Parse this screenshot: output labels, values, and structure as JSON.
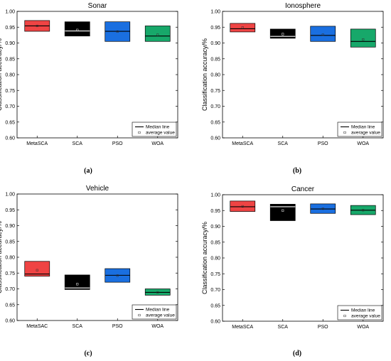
{
  "figure": {
    "panel_labels": [
      "(a)",
      "(b)",
      "(c)",
      "(d)"
    ]
  },
  "colors": {
    "MetaSCA": "#ef4444",
    "MetaSAC": "#ef4444",
    "SCA": "#000000",
    "PSO": "#1a6fe0",
    "WOA": "#17a86a"
  },
  "chart_data": [
    {
      "type": "box",
      "title": "Sonar",
      "xlabel": "",
      "ylabel": "Classification accuracy/%",
      "ylim": [
        0.6,
        1.0
      ],
      "yticks": [
        "0.60",
        "0.65",
        "0.70",
        "0.75",
        "0.80",
        "0.85",
        "0.90",
        "0.95",
        "1.00"
      ],
      "categories": [
        "MetaSCA",
        "SCA",
        "PSO",
        "WOA"
      ],
      "boxes": [
        {
          "q1": 0.937,
          "median": 0.954,
          "q3": 0.971,
          "mean": 0.954
        },
        {
          "q1": 0.922,
          "median": 0.938,
          "q3": 0.967,
          "mean": 0.941
        },
        {
          "q1": 0.905,
          "median": 0.937,
          "q3": 0.967,
          "mean": 0.936
        },
        {
          "q1": 0.905,
          "median": 0.922,
          "q3": 0.954,
          "mean": 0.926
        }
      ],
      "legend": {
        "position": "bottom-right",
        "entries": [
          "Median line",
          "average value"
        ]
      }
    },
    {
      "type": "box",
      "title": "Ionosphere",
      "xlabel": "",
      "ylabel": "Classification accuracy/%",
      "ylim": [
        0.6,
        1.0
      ],
      "yticks": [
        "0.60",
        "0.65",
        "0.70",
        "0.75",
        "0.80",
        "0.85",
        "0.90",
        "0.95",
        "1.00"
      ],
      "categories": [
        "MetaSCA",
        "SCA",
        "PSO",
        "WOA"
      ],
      "boxes": [
        {
          "q1": 0.935,
          "median": 0.945,
          "q3": 0.962,
          "mean": 0.949
        },
        {
          "q1": 0.915,
          "median": 0.921,
          "q3": 0.944,
          "mean": 0.928
        },
        {
          "q1": 0.905,
          "median": 0.924,
          "q3": 0.953,
          "mean": 0.926
        },
        {
          "q1": 0.887,
          "median": 0.905,
          "q3": 0.944,
          "mean": 0.911
        }
      ],
      "legend": {
        "position": "bottom-right",
        "entries": [
          "Median line",
          "average value"
        ]
      }
    },
    {
      "type": "box",
      "title": "Vehicle",
      "xlabel": "",
      "ylabel": "Classification accuracy/%",
      "ylim": [
        0.6,
        1.0
      ],
      "yticks": [
        "0.60",
        "0.65",
        "0.70",
        "0.75",
        "0.80",
        "0.85",
        "0.90",
        "0.95",
        "1.00"
      ],
      "categories": [
        "MetaSAC",
        "SCA",
        "PSO",
        "WOA"
      ],
      "boxes": [
        {
          "q1": 0.74,
          "median": 0.747,
          "q3": 0.787,
          "mean": 0.759
        },
        {
          "q1": 0.698,
          "median": 0.703,
          "q3": 0.744,
          "mean": 0.715
        },
        {
          "q1": 0.721,
          "median": 0.743,
          "q3": 0.764,
          "mean": 0.742
        },
        {
          "q1": 0.68,
          "median": 0.689,
          "q3": 0.7,
          "mean": 0.689
        }
      ],
      "legend": {
        "position": "bottom-right",
        "entries": [
          "Median line",
          "average value"
        ]
      }
    },
    {
      "type": "box",
      "title": "Cancer",
      "xlabel": "",
      "ylabel": "Classification accuracy/%",
      "ylim": [
        0.6,
        1.0
      ],
      "yticks": [
        "0.60",
        "0.65",
        "0.70",
        "0.75",
        "0.80",
        "0.85",
        "0.90",
        "0.95",
        "1.00"
      ],
      "categories": [
        "MetaSCA",
        "SCA",
        "PSO",
        "WOA"
      ],
      "boxes": [
        {
          "q1": 0.947,
          "median": 0.962,
          "q3": 0.98,
          "mean": 0.963
        },
        {
          "q1": 0.918,
          "median": 0.962,
          "q3": 0.97,
          "mean": 0.95
        },
        {
          "q1": 0.941,
          "median": 0.955,
          "q3": 0.971,
          "mean": 0.956
        },
        {
          "q1": 0.937,
          "median": 0.951,
          "q3": 0.966,
          "mean": 0.951
        }
      ],
      "legend": {
        "position": "bottom-right",
        "entries": [
          "Median line",
          "average value"
        ]
      }
    }
  ]
}
